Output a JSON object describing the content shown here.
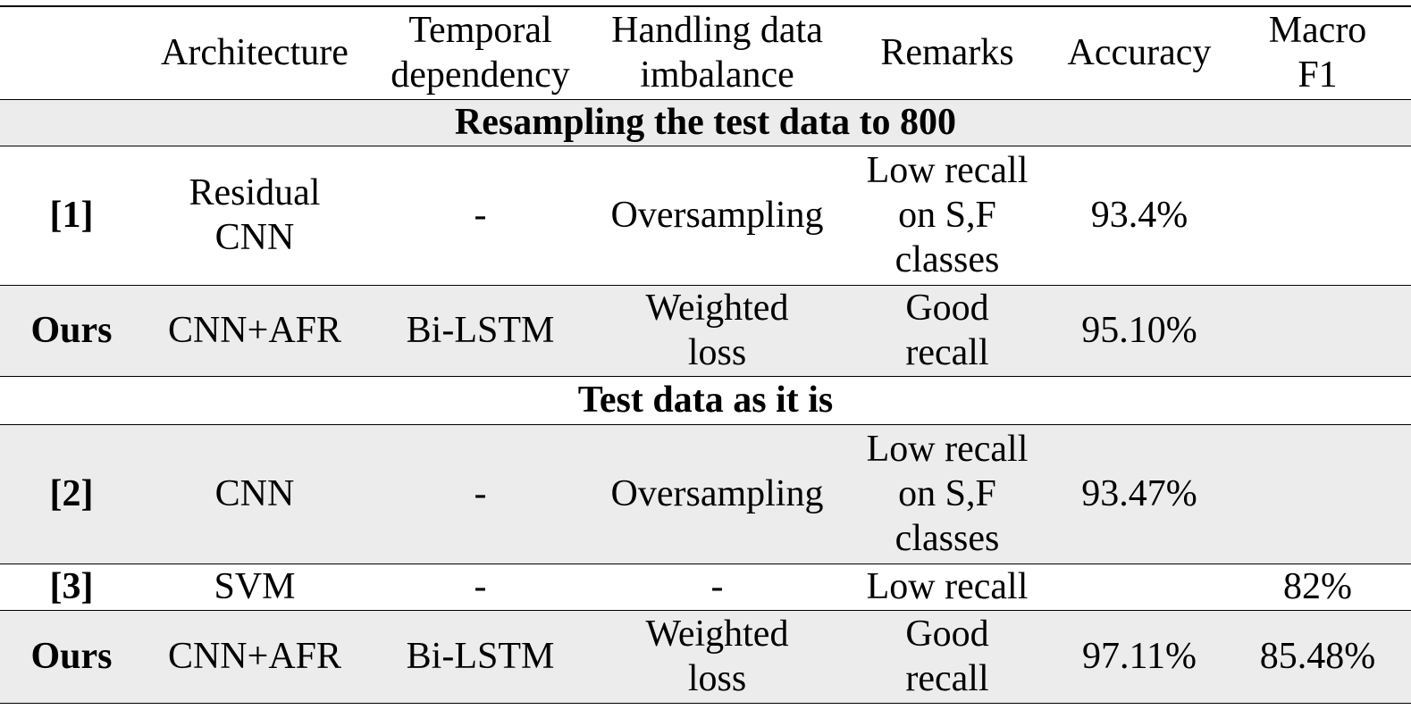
{
  "table": {
    "header": [
      null,
      "Architecture",
      [
        "Temporal",
        "dependency"
      ],
      [
        "Handling data",
        "imbalance"
      ],
      "Remarks",
      "Accuracy",
      [
        "Macro",
        "F1"
      ]
    ],
    "sections": [
      {
        "title": "Resampling the test data to 800",
        "rows": [
          [
            "[1]",
            [
              "Residual",
              "CNN"
            ],
            "-",
            "Oversampling",
            [
              "Low recall",
              "on S,F",
              "classes"
            ],
            "93.4%",
            null
          ],
          [
            "Ours",
            "CNN+AFR",
            "Bi-LSTM",
            [
              "Weighted",
              "loss"
            ],
            [
              "Good",
              "recall"
            ],
            "95.10%",
            null
          ]
        ]
      },
      {
        "title": "Test data as it is",
        "rows": [
          [
            "[2]",
            "CNN",
            "-",
            "Oversampling",
            [
              "Low recall",
              "on S,F",
              "classes"
            ],
            "93.47%",
            null
          ],
          [
            "[3]",
            "SVM",
            "-",
            "-",
            "Low recall",
            null,
            "82%"
          ],
          [
            "Ours",
            "CNN+AFR",
            "Bi-LSTM",
            [
              "Weighted",
              "loss"
            ],
            [
              "Good",
              "recall"
            ],
            "97.11%",
            "85.48%"
          ]
        ]
      }
    ]
  }
}
